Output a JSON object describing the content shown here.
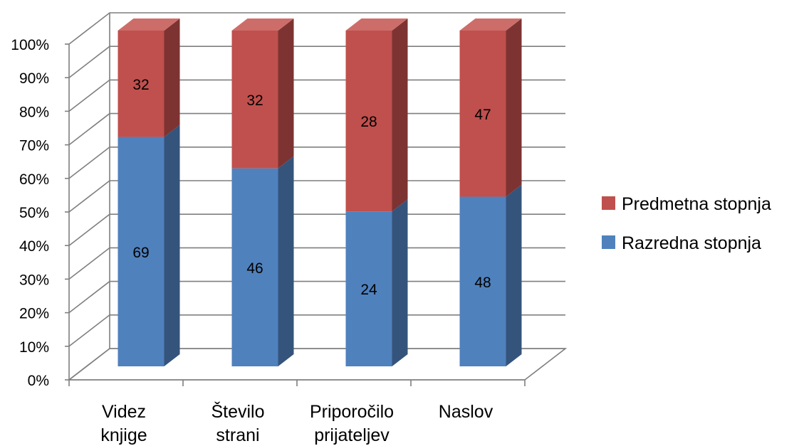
{
  "chart_data": {
    "type": "bar",
    "stacked": "percent",
    "three_d": true,
    "categories": [
      [
        "Videz",
        "knjige"
      ],
      [
        "Število",
        "strani"
      ],
      [
        "Priporočilo",
        "prijateljev"
      ],
      [
        "Naslov"
      ]
    ],
    "series": [
      {
        "name": "Razredna stopnja",
        "values": [
          69,
          46,
          24,
          48
        ],
        "color": "#4f81bd",
        "side_color": "#34547c",
        "top_color": "#6f98cc"
      },
      {
        "name": "Predmetna stopnja",
        "values": [
          32,
          32,
          28,
          47
        ],
        "color": "#c0504d",
        "side_color": "#7d3331",
        "top_color": "#cd6d6a"
      }
    ],
    "y_ticks": [
      "0%",
      "10%",
      "20%",
      "30%",
      "40%",
      "50%",
      "60%",
      "70%",
      "80%",
      "90%",
      "100%"
    ],
    "ylim": [
      0,
      100
    ],
    "grid": true,
    "legend_position": "right"
  }
}
